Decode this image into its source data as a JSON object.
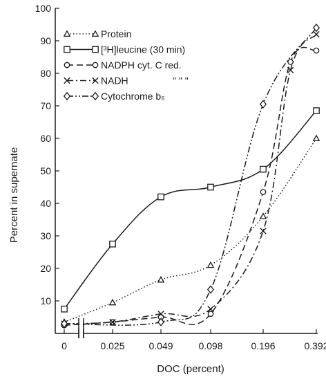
{
  "chart_data": {
    "type": "line",
    "title": "",
    "xlabel": "DOC (percent)",
    "ylabel": "Percent in supernate",
    "x_scale": "log2 (broken axis after 0)",
    "x_categories": [
      "0",
      "0.025",
      "0.049",
      "0.098",
      "0.196",
      "0.392"
    ],
    "ylim": [
      0,
      100
    ],
    "yticks": [
      "10",
      "20",
      "30",
      "40",
      "50",
      "60",
      "70",
      "80",
      "90",
      "100"
    ],
    "grid": false,
    "legend": {
      "placement": "top-left",
      "entries": [
        {
          "label": "Protein",
          "marker": "triangle",
          "style": "dotted"
        },
        {
          "label": "[³H]leucine (30 min)",
          "marker": "square",
          "style": "solid"
        },
        {
          "label": "NADPH cyt. C red.",
          "marker": "circle",
          "style": "dashed"
        },
        {
          "label": "NADH",
          "marker": "x",
          "style": "dash-dot",
          "ditto": "\"     \"     \""
        },
        {
          "label": "Cytochrome b₅",
          "marker": "diamond",
          "style": "dash-dot-dot"
        }
      ]
    },
    "series": [
      {
        "name": "Protein",
        "marker": "triangle",
        "style": "dotted",
        "x": [
          0,
          0.025,
          0.049,
          0.098,
          0.196,
          0.392
        ],
        "y": [
          3.5,
          9.5,
          16.5,
          21,
          36,
          60
        ]
      },
      {
        "name": "[³H]leucine (30 min)",
        "marker": "square",
        "style": "solid",
        "x": [
          0,
          0.025,
          0.049,
          0.098,
          0.196,
          0.392
        ],
        "y": [
          7.5,
          27.5,
          42,
          45,
          50.5,
          68.5
        ]
      },
      {
        "name": "NADPH cyt. C red.",
        "marker": "circle",
        "style": "dashed",
        "x": [
          0,
          0.025,
          0.049,
          0.098,
          0.196,
          0.28,
          0.392
        ],
        "y": [
          2.5,
          3.5,
          5,
          6,
          43.5,
          83.5,
          87
        ]
      },
      {
        "name": "NADH",
        "marker": "x",
        "style": "dash-dot",
        "x": [
          0,
          0.025,
          0.049,
          0.098,
          0.196,
          0.28,
          0.392
        ],
        "y": [
          3,
          3.5,
          6,
          7.5,
          31.5,
          81,
          92
        ]
      },
      {
        "name": "Cytochrome b₅",
        "marker": "diamond",
        "style": "dash-dot-dot",
        "x": [
          0,
          0.049,
          0.098,
          0.196,
          0.392
        ],
        "y": [
          3,
          3.5,
          13.5,
          70.5,
          94
        ]
      }
    ]
  }
}
